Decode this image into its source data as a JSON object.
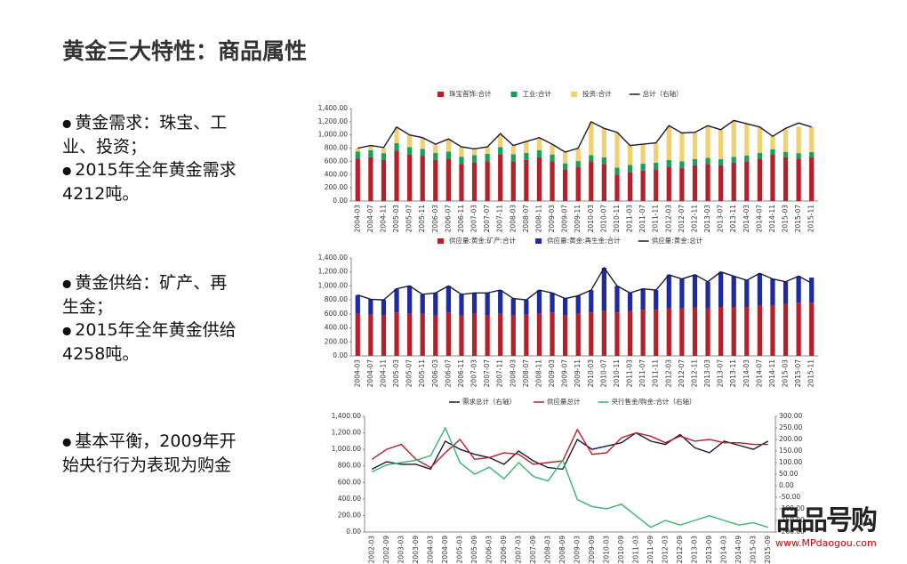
{
  "title": "黄金三大特性：商品属性",
  "bullets": [
    {
      "lines": [
        "黄金需求：珠宝、工",
        "业、投资；"
      ]
    },
    {
      "lines": [
        "2015年全年黄金需求",
        "4212吨。"
      ]
    },
    {
      "lines": [
        "黄金供给：矿产、再",
        "生金；"
      ]
    },
    {
      "lines": [
        "2015年全年黄金供给",
        "4258吨。"
      ]
    },
    {
      "lines": [
        "基本平衡，2009年开",
        "始央行行为表现为购金"
      ]
    }
  ],
  "watermark": {
    "logo": "品品号购",
    "url": "www.MPdaogou.com"
  },
  "chart_data": [
    {
      "type": "bar",
      "stacked": true,
      "categories": [
        "2004-03",
        "2004-07",
        "2004-11",
        "2005-03",
        "2005-07",
        "2005-11",
        "2006-03",
        "2006-07",
        "2006-11",
        "2007-03",
        "2007-07",
        "2007-11",
        "2008-03",
        "2008-07",
        "2008-11",
        "2009-03",
        "2009-07",
        "2009-11",
        "2010-03",
        "2010-07",
        "2010-11",
        "2011-03",
        "2011-07",
        "2011-11",
        "2012-03",
        "2012-07",
        "2012-11",
        "2013-03",
        "2013-07",
        "2013-11",
        "2014-03",
        "2014-07",
        "2014-11",
        "2015-03",
        "2015-07",
        "2015-11"
      ],
      "ylim": [
        0,
        1400
      ],
      "yticks": [
        {
          "value": 0,
          "label": "0.00"
        },
        {
          "value": 200,
          "label": "200.00"
        },
        {
          "value": 400,
          "label": "400.00"
        },
        {
          "value": 600,
          "label": "600.00"
        },
        {
          "value": 800,
          "label": "800.00"
        },
        {
          "value": 1000,
          "label": "1,000.00"
        },
        {
          "value": 1200,
          "label": "1,200.00"
        },
        {
          "value": 1400,
          "label": "1,400.00"
        }
      ],
      "series": [
        {
          "name": "珠宝首饰:合计",
          "color": "#b5202a",
          "values": [
            640,
            660,
            620,
            760,
            700,
            680,
            620,
            640,
            560,
            580,
            600,
            700,
            600,
            620,
            660,
            600,
            480,
            520,
            600,
            560,
            400,
            440,
            460,
            480,
            520,
            500,
            540,
            560,
            540,
            580,
            600,
            640,
            700,
            660,
            640,
            660
          ]
        },
        {
          "name": "工业:合计",
          "color": "#1aa05a",
          "values": [
            110,
            110,
            105,
            115,
            115,
            110,
            110,
            110,
            110,
            115,
            115,
            115,
            110,
            110,
            110,
            105,
            90,
            85,
            95,
            100,
            105,
            105,
            105,
            100,
            100,
            100,
            95,
            95,
            95,
            90,
            90,
            90,
            85,
            85,
            85,
            80
          ]
        },
        {
          "name": "投资:合计",
          "color": "#f0d070",
          "values": [
            50,
            70,
            80,
            240,
            180,
            170,
            130,
            190,
            150,
            100,
            110,
            200,
            130,
            170,
            190,
            150,
            170,
            190,
            500,
            440,
            540,
            300,
            300,
            300,
            520,
            430,
            400,
            480,
            440,
            550,
            480,
            390,
            200,
            340,
            400,
            380
          ]
        },
        {
          "name": "总计（右轴）",
          "type": "line",
          "color": "#1a1a3a",
          "values": [
            800,
            840,
            810,
            1120,
            1000,
            960,
            860,
            940,
            820,
            790,
            820,
            1020,
            840,
            900,
            960,
            860,
            740,
            800,
            1200,
            1100,
            1040,
            840,
            860,
            880,
            1140,
            1030,
            1040,
            1140,
            1080,
            1220,
            1170,
            1120,
            980,
            1100,
            1180,
            1120
          ]
        }
      ]
    },
    {
      "type": "bar",
      "stacked": true,
      "categories": [
        "2004-03",
        "2004-07",
        "2004-11",
        "2005-03",
        "2005-07",
        "2005-11",
        "2006-03",
        "2006-07",
        "2006-11",
        "2007-03",
        "2007-07",
        "2007-11",
        "2008-03",
        "2008-07",
        "2008-11",
        "2009-03",
        "2009-07",
        "2009-11",
        "2010-03",
        "2010-07",
        "2010-11",
        "2011-03",
        "2011-07",
        "2011-11",
        "2012-03",
        "2012-07",
        "2012-11",
        "2013-03",
        "2013-07",
        "2013-11",
        "2014-03",
        "2014-07",
        "2014-11",
        "2015-03",
        "2015-07",
        "2015-11"
      ],
      "ylim": [
        0,
        1400
      ],
      "yticks": [
        {
          "value": 0,
          "label": "0.00"
        },
        {
          "value": 200,
          "label": "200.00"
        },
        {
          "value": 400,
          "label": "400.00"
        },
        {
          "value": 600,
          "label": "600.00"
        },
        {
          "value": 800,
          "label": "800.00"
        },
        {
          "value": 1000,
          "label": "1,000.00"
        },
        {
          "value": 1200,
          "label": "1,200.00"
        },
        {
          "value": 1400,
          "label": "1,400.00"
        }
      ],
      "series": [
        {
          "name": "供应量:黄金:矿产:合计",
          "color": "#b5202a",
          "values": [
            600,
            590,
            580,
            620,
            600,
            600,
            580,
            620,
            580,
            600,
            580,
            600,
            580,
            590,
            600,
            620,
            580,
            600,
            620,
            640,
            620,
            640,
            660,
            660,
            680,
            680,
            700,
            680,
            700,
            700,
            700,
            720,
            720,
            740,
            760,
            760
          ]
        },
        {
          "name": "供应量:黄金:再生金:合计",
          "color": "#1f2aa0",
          "values": [
            270,
            220,
            220,
            340,
            400,
            280,
            320,
            380,
            300,
            300,
            320,
            340,
            240,
            210,
            340,
            280,
            240,
            260,
            320,
            620,
            380,
            260,
            300,
            280,
            480,
            420,
            460,
            380,
            500,
            440,
            380,
            460,
            380,
            320,
            380,
            360
          ]
        },
        {
          "name": "供应量:黄金:总计",
          "type": "line",
          "color": "#1a1a3a",
          "values": [
            870,
            810,
            800,
            960,
            1000,
            880,
            900,
            1000,
            880,
            900,
            900,
            940,
            820,
            800,
            940,
            900,
            820,
            860,
            940,
            1260,
            1000,
            900,
            960,
            940,
            1160,
            1100,
            1160,
            1060,
            1200,
            1140,
            1080,
            1180,
            1100,
            1060,
            1140,
            1040
          ]
        }
      ]
    },
    {
      "type": "line",
      "categories": [
        "2002-03",
        "2002-09",
        "2003-03",
        "2003-09",
        "2004-03",
        "2004-09",
        "2005-03",
        "2005-09",
        "2006-03",
        "2006-09",
        "2007-03",
        "2007-09",
        "2008-03",
        "2008-09",
        "2009-03",
        "2009-09",
        "2010-03",
        "2010-09",
        "2011-03",
        "2011-09",
        "2012-03",
        "2012-09",
        "2013-03",
        "2013-09",
        "2014-03",
        "2014-09",
        "2015-03",
        "2015-09"
      ],
      "ylim": [
        0,
        1400
      ],
      "yticks": [
        {
          "value": 0,
          "label": "0.00"
        },
        {
          "value": 200,
          "label": "200.00"
        },
        {
          "value": 400,
          "label": "400.00"
        },
        {
          "value": 600,
          "label": "600.00"
        },
        {
          "value": 800,
          "label": "800.00"
        },
        {
          "value": 1000,
          "label": "1,000.00"
        },
        {
          "value": 1200,
          "label": "1,200.00"
        },
        {
          "value": 1400,
          "label": "1,400.00"
        }
      ],
      "y2lim": [
        -200,
        300
      ],
      "y2ticks": [
        {
          "value": -200,
          "label": "-200.00"
        },
        {
          "value": -150,
          "label": "-150.00"
        },
        {
          "value": -100,
          "label": "-100.00"
        },
        {
          "value": -50,
          "label": "-50.00"
        },
        {
          "value": 0,
          "label": "0.00"
        },
        {
          "value": 50,
          "label": "50.00"
        },
        {
          "value": 100,
          "label": "100.00"
        },
        {
          "value": 150,
          "label": "150.00"
        },
        {
          "value": 200,
          "label": "200.00"
        },
        {
          "value": 250,
          "label": "250.00"
        },
        {
          "value": 300,
          "label": "300.00"
        }
      ],
      "series": [
        {
          "name": "需求总计（右轴）",
          "color": "#1a1a3a",
          "values": [
            760,
            850,
            820,
            820,
            760,
            1100,
            1000,
            940,
            900,
            820,
            980,
            860,
            780,
            760,
            1120,
            1000,
            1040,
            1080,
            1200,
            1100,
            1060,
            1180,
            1020,
            960,
            1100,
            1050,
            1000,
            1100
          ]
        },
        {
          "name": "供应量总计",
          "color": "#b5202a",
          "values": [
            880,
            1000,
            1060,
            880,
            780,
            960,
            1120,
            880,
            900,
            960,
            940,
            820,
            840,
            860,
            1240,
            940,
            960,
            1140,
            1200,
            1160,
            1080,
            1160,
            1100,
            1120,
            1080,
            1080,
            1060,
            1060
          ]
        },
        {
          "name": "央行售金/购金:合计（右轴）",
          "color": "#3cb371",
          "axis": "y2",
          "values": [
            60,
            90,
            100,
            110,
            130,
            250,
            100,
            50,
            80,
            30,
            100,
            40,
            20,
            110,
            -60,
            -90,
            -100,
            -80,
            -130,
            -180,
            -150,
            -170,
            -150,
            -130,
            -150,
            -170,
            -160,
            -180
          ]
        }
      ]
    }
  ]
}
